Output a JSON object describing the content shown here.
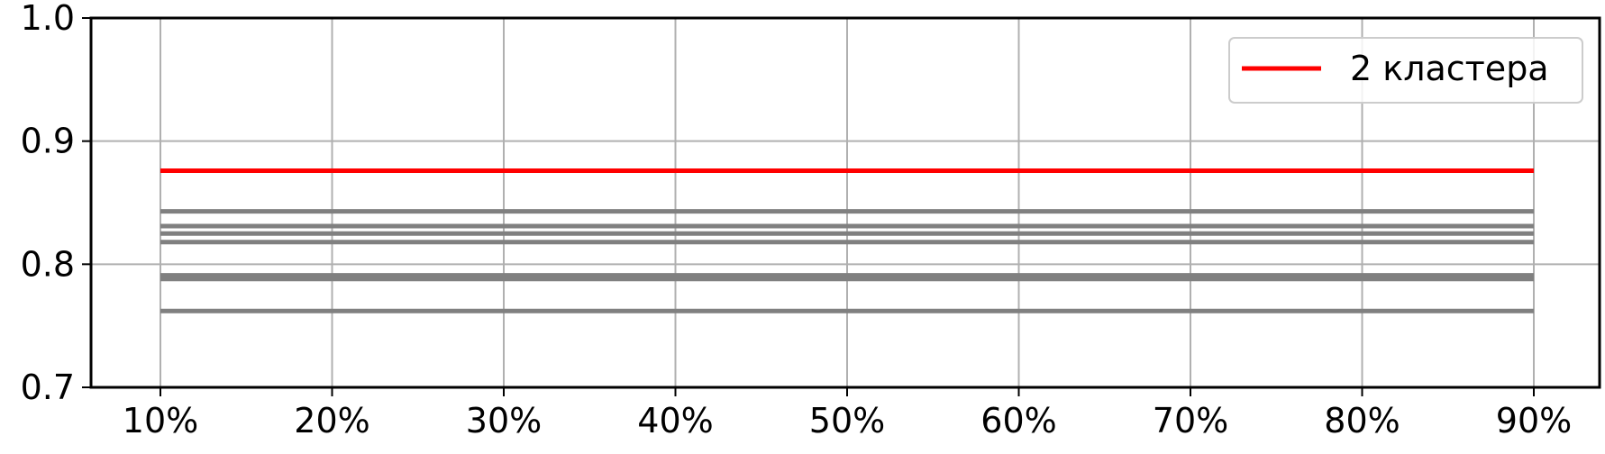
{
  "chart_data": {
    "type": "line",
    "title": "",
    "xlabel": "",
    "ylabel": "",
    "x": [
      "10%",
      "20%",
      "30%",
      "40%",
      "50%",
      "60%",
      "70%",
      "80%",
      "90%"
    ],
    "ylim": [
      0.7,
      1.0
    ],
    "yticks": [
      "0.7",
      "0.8",
      "0.9",
      "1.0"
    ],
    "grid": true,
    "legend_position": "top-right",
    "highlight_series": {
      "name": "2 кластера",
      "color": "#ff0000",
      "values": [
        0.876,
        0.876,
        0.876,
        0.876,
        0.876,
        0.876,
        0.876,
        0.876,
        0.876
      ]
    },
    "background_series_color": "#808080",
    "background_series": [
      {
        "values": [
          0.843,
          0.843,
          0.843,
          0.843,
          0.843,
          0.843,
          0.843,
          0.843,
          0.843
        ]
      },
      {
        "values": [
          0.831,
          0.831,
          0.831,
          0.831,
          0.831,
          0.831,
          0.831,
          0.831,
          0.831
        ]
      },
      {
        "values": [
          0.825,
          0.825,
          0.825,
          0.825,
          0.825,
          0.825,
          0.825,
          0.825,
          0.825
        ]
      },
      {
        "values": [
          0.818,
          0.818,
          0.818,
          0.818,
          0.818,
          0.818,
          0.818,
          0.818,
          0.818
        ]
      },
      {
        "values": [
          0.791,
          0.791,
          0.791,
          0.791,
          0.791,
          0.791,
          0.791,
          0.791,
          0.791
        ]
      },
      {
        "values": [
          0.788,
          0.788,
          0.788,
          0.788,
          0.788,
          0.788,
          0.788,
          0.788,
          0.788
        ]
      },
      {
        "values": [
          0.762,
          0.762,
          0.762,
          0.762,
          0.762,
          0.762,
          0.762,
          0.762,
          0.762
        ]
      }
    ]
  }
}
